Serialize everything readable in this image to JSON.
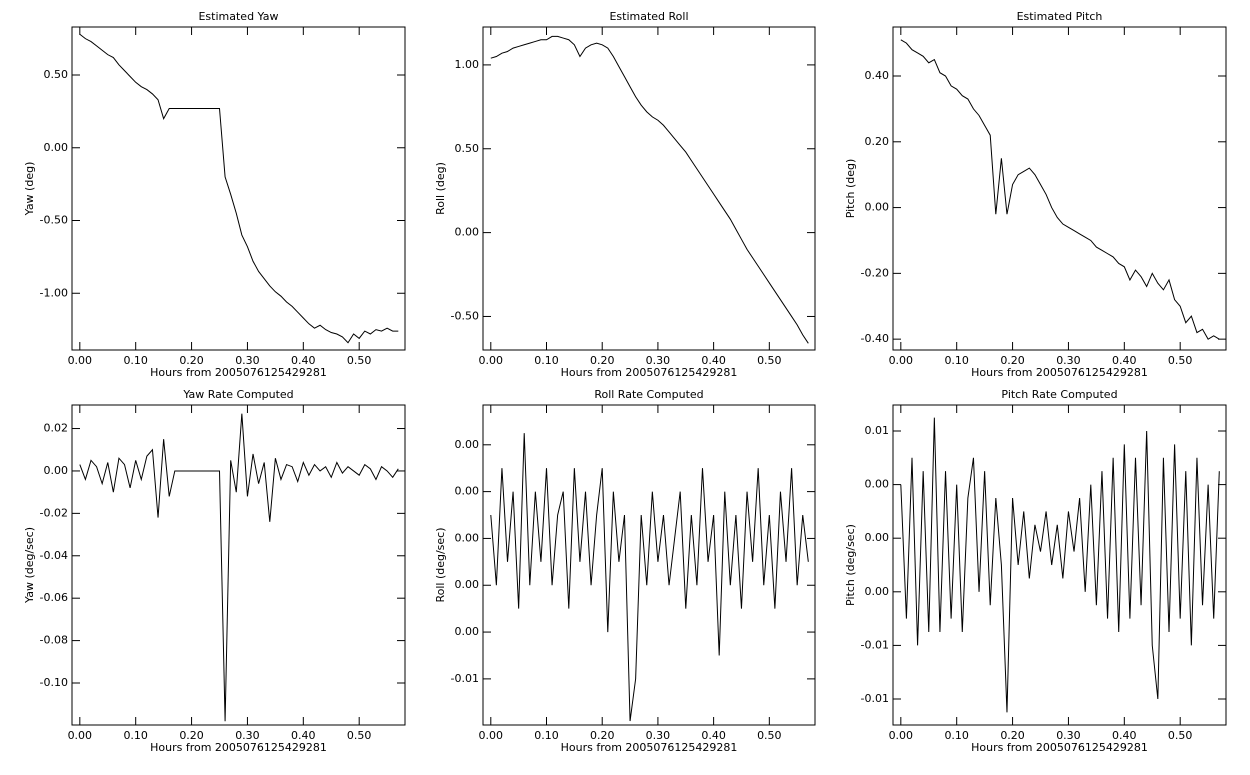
{
  "chart_data": [
    {
      "type": "line",
      "title": "Estimated Yaw",
      "x_label": "Hours from 2005076125429281",
      "y_label": "Yaw (deg)",
      "color": "#000000",
      "x": [
        0,
        0.01,
        0.02,
        0.03,
        0.04,
        0.05,
        0.06,
        0.07,
        0.08,
        0.09,
        0.1,
        0.11,
        0.12,
        0.13,
        0.14,
        0.15,
        0.16,
        0.17,
        0.18,
        0.19,
        0.2,
        0.21,
        0.22,
        0.23,
        0.24,
        0.25,
        0.26,
        0.27,
        0.28,
        0.29,
        0.3,
        0.31,
        0.32,
        0.33,
        0.34,
        0.35,
        0.36,
        0.37,
        0.38,
        0.39,
        0.4,
        0.41,
        0.42,
        0.43,
        0.44,
        0.45,
        0.46,
        0.47,
        0.48,
        0.49,
        0.5,
        0.51,
        0.52,
        0.53,
        0.54,
        0.55,
        0.56,
        0.57
      ],
      "values": [
        0.78,
        0.75,
        0.73,
        0.7,
        0.67,
        0.64,
        0.62,
        0.57,
        0.53,
        0.49,
        0.45,
        0.42,
        0.4,
        0.37,
        0.33,
        0.2,
        0.27,
        0.27,
        0.27,
        0.27,
        0.27,
        0.27,
        0.27,
        0.27,
        0.27,
        0.27,
        -0.2,
        -0.32,
        -0.45,
        -0.6,
        -0.68,
        -0.78,
        -0.85,
        -0.9,
        -0.95,
        -0.99,
        -1.02,
        -1.06,
        -1.09,
        -1.13,
        -1.17,
        -1.21,
        -1.24,
        -1.22,
        -1.25,
        -1.27,
        -1.28,
        -1.3,
        -1.34,
        -1.28,
        -1.31,
        -1.26,
        -1.28,
        -1.25,
        -1.26,
        -1.24,
        -1.26,
        -1.26
      ],
      "xlim": [
        -0.014,
        0.582
      ],
      "ylim": [
        -1.39,
        0.83
      ],
      "xticks": [
        {
          "value": 0,
          "label": "0.00"
        },
        {
          "value": 0.1,
          "label": "0.10"
        },
        {
          "value": 0.2,
          "label": "0.20"
        },
        {
          "value": 0.3,
          "label": "0.30"
        },
        {
          "value": 0.4,
          "label": "0.40"
        },
        {
          "value": 0.5,
          "label": "0.50"
        }
      ],
      "yticks": [
        {
          "value": 0.5,
          "label": "0.50"
        },
        {
          "value": 0,
          "label": "0.00"
        },
        {
          "value": -0.5,
          "label": "-0.50"
        },
        {
          "value": -1,
          "label": "-1.00"
        }
      ]
    },
    {
      "type": "line",
      "title": "Estimated Roll",
      "x_label": "Hours from 2005076125429281",
      "y_label": "Roll (deg)",
      "color": "#000000",
      "x": [
        0,
        0.01,
        0.02,
        0.03,
        0.04,
        0.05,
        0.06,
        0.07,
        0.08,
        0.09,
        0.1,
        0.11,
        0.12,
        0.13,
        0.14,
        0.15,
        0.16,
        0.17,
        0.18,
        0.19,
        0.2,
        0.21,
        0.22,
        0.23,
        0.24,
        0.25,
        0.26,
        0.27,
        0.28,
        0.29,
        0.3,
        0.31,
        0.32,
        0.33,
        0.34,
        0.35,
        0.36,
        0.37,
        0.38,
        0.39,
        0.4,
        0.41,
        0.42,
        0.43,
        0.44,
        0.45,
        0.46,
        0.47,
        0.48,
        0.49,
        0.5,
        0.51,
        0.52,
        0.53,
        0.54,
        0.55,
        0.56,
        0.57
      ],
      "values": [
        1.04,
        1.05,
        1.07,
        1.08,
        1.1,
        1.11,
        1.12,
        1.13,
        1.14,
        1.15,
        1.15,
        1.17,
        1.17,
        1.16,
        1.15,
        1.12,
        1.05,
        1.1,
        1.12,
        1.13,
        1.12,
        1.1,
        1.05,
        0.99,
        0.93,
        0.87,
        0.81,
        0.76,
        0.72,
        0.69,
        0.67,
        0.64,
        0.6,
        0.56,
        0.52,
        0.48,
        0.43,
        0.38,
        0.33,
        0.28,
        0.23,
        0.18,
        0.13,
        0.08,
        0.02,
        -0.04,
        -0.1,
        -0.15,
        -0.2,
        -0.25,
        -0.3,
        -0.35,
        -0.4,
        -0.45,
        -0.5,
        -0.55,
        -0.61,
        -0.66
      ],
      "xlim": [
        -0.014,
        0.582
      ],
      "ylim": [
        -0.7,
        1.226
      ],
      "xticks": [
        {
          "value": 0,
          "label": "0.00"
        },
        {
          "value": 0.1,
          "label": "0.10"
        },
        {
          "value": 0.2,
          "label": "0.20"
        },
        {
          "value": 0.3,
          "label": "0.30"
        },
        {
          "value": 0.4,
          "label": "0.40"
        },
        {
          "value": 0.5,
          "label": "0.50"
        }
      ],
      "yticks": [
        {
          "value": 1,
          "label": "1.00"
        },
        {
          "value": 0.5,
          "label": "0.50"
        },
        {
          "value": 0,
          "label": "0.00"
        },
        {
          "value": -0.5,
          "label": "-0.50"
        }
      ]
    },
    {
      "type": "line",
      "title": "Estimated Pitch",
      "x_label": "Hours from 2005076125429281",
      "y_label": "Pitch (deg)",
      "color": "#000000",
      "x": [
        0,
        0.01,
        0.02,
        0.03,
        0.04,
        0.05,
        0.06,
        0.07,
        0.08,
        0.09,
        0.1,
        0.11,
        0.12,
        0.13,
        0.14,
        0.15,
        0.16,
        0.17,
        0.18,
        0.19,
        0.2,
        0.21,
        0.22,
        0.23,
        0.24,
        0.25,
        0.26,
        0.27,
        0.28,
        0.29,
        0.3,
        0.31,
        0.32,
        0.33,
        0.34,
        0.35,
        0.36,
        0.37,
        0.38,
        0.39,
        0.4,
        0.41,
        0.42,
        0.43,
        0.44,
        0.45,
        0.46,
        0.47,
        0.48,
        0.49,
        0.5,
        0.51,
        0.52,
        0.53,
        0.54,
        0.55,
        0.56,
        0.57
      ],
      "values": [
        0.51,
        0.5,
        0.48,
        0.47,
        0.46,
        0.44,
        0.45,
        0.41,
        0.4,
        0.37,
        0.36,
        0.34,
        0.33,
        0.3,
        0.28,
        0.25,
        0.22,
        -0.02,
        0.15,
        -0.02,
        0.07,
        0.1,
        0.11,
        0.12,
        0.1,
        0.07,
        0.04,
        0.0,
        -0.03,
        -0.05,
        -0.06,
        -0.07,
        -0.08,
        -0.09,
        -0.1,
        -0.12,
        -0.13,
        -0.14,
        -0.15,
        -0.17,
        -0.18,
        -0.22,
        -0.19,
        -0.21,
        -0.24,
        -0.2,
        -0.23,
        -0.25,
        -0.22,
        -0.28,
        -0.3,
        -0.35,
        -0.33,
        -0.38,
        -0.37,
        -0.4,
        -0.39,
        -0.4
      ],
      "xlim": [
        -0.014,
        0.582
      ],
      "ylim": [
        -0.433,
        0.549
      ],
      "xticks": [
        {
          "value": 0,
          "label": "0.00"
        },
        {
          "value": 0.1,
          "label": "0.10"
        },
        {
          "value": 0.2,
          "label": "0.20"
        },
        {
          "value": 0.3,
          "label": "0.30"
        },
        {
          "value": 0.4,
          "label": "0.40"
        },
        {
          "value": 0.5,
          "label": "0.50"
        }
      ],
      "yticks": [
        {
          "value": 0.4,
          "label": "0.40"
        },
        {
          "value": 0.2,
          "label": "0.20"
        },
        {
          "value": 0,
          "label": "0.00"
        },
        {
          "value": -0.2,
          "label": "-0.20"
        },
        {
          "value": -0.4,
          "label": "-0.40"
        }
      ]
    },
    {
      "type": "line",
      "title": "Yaw Rate Computed",
      "x_label": "Hours from 2005076125429281",
      "y_label": "Yaw (deg/sec)",
      "color": "#000000",
      "x": [
        0,
        0.01,
        0.02,
        0.03,
        0.04,
        0.05,
        0.06,
        0.07,
        0.08,
        0.09,
        0.1,
        0.11,
        0.12,
        0.13,
        0.14,
        0.15,
        0.16,
        0.17,
        0.18,
        0.19,
        0.2,
        0.21,
        0.22,
        0.23,
        0.24,
        0.25,
        0.26,
        0.27,
        0.28,
        0.29,
        0.3,
        0.31,
        0.32,
        0.33,
        0.34,
        0.35,
        0.36,
        0.37,
        0.38,
        0.39,
        0.4,
        0.41,
        0.42,
        0.43,
        0.44,
        0.45,
        0.46,
        0.47,
        0.48,
        0.49,
        0.5,
        0.51,
        0.52,
        0.53,
        0.54,
        0.55,
        0.56,
        0.57
      ],
      "values": [
        0.003,
        -0.004,
        0.005,
        0.002,
        -0.006,
        0.004,
        -0.01,
        0.006,
        0.003,
        -0.008,
        0.005,
        -0.004,
        0.007,
        0.01,
        -0.022,
        0.015,
        -0.012,
        0,
        0,
        0,
        0,
        0,
        0,
        0,
        0,
        0,
        -0.118,
        0.005,
        -0.01,
        0.027,
        -0.012,
        0.008,
        -0.006,
        0.004,
        -0.024,
        0.006,
        -0.004,
        0.003,
        0.002,
        -0.005,
        0.004,
        -0.002,
        0.003,
        0.0,
        0.002,
        -0.003,
        0.004,
        -0.001,
        0.002,
        0.0,
        -0.002,
        0.003,
        0.001,
        -0.004,
        0.002,
        0.0,
        -0.003,
        0.001
      ],
      "xlim": [
        -0.014,
        0.582
      ],
      "ylim": [
        -0.1198,
        0.0311
      ],
      "xticks": [
        {
          "value": 0,
          "label": "0.00"
        },
        {
          "value": 0.1,
          "label": "0.10"
        },
        {
          "value": 0.2,
          "label": "0.20"
        },
        {
          "value": 0.3,
          "label": "0.30"
        },
        {
          "value": 0.4,
          "label": "0.40"
        },
        {
          "value": 0.5,
          "label": "0.50"
        }
      ],
      "yticks": [
        0.02,
        {
          "value": 0,
          "label": "0.00"
        },
        -0.02,
        -0.04,
        -0.06,
        -0.08,
        {
          "value": -0.1,
          "label": "-0.10"
        }
      ]
    },
    {
      "type": "line",
      "title": "Roll Rate Computed",
      "x_label": "Hours from 2005076125429281",
      "y_label": "Roll (deg/sec)",
      "color": "#000000",
      "x": [
        0,
        0.01,
        0.02,
        0.03,
        0.04,
        0.05,
        0.06,
        0.07,
        0.08,
        0.09,
        0.1,
        0.11,
        0.12,
        0.13,
        0.14,
        0.15,
        0.16,
        0.17,
        0.18,
        0.19,
        0.2,
        0.21,
        0.22,
        0.23,
        0.24,
        0.25,
        0.26,
        0.27,
        0.28,
        0.29,
        0.3,
        0.31,
        0.32,
        0.33,
        0.34,
        0.35,
        0.36,
        0.37,
        0.38,
        0.39,
        0.4,
        0.41,
        0.42,
        0.43,
        0.44,
        0.45,
        0.46,
        0.47,
        0.48,
        0.49,
        0.5,
        0.51,
        0.52,
        0.53,
        0.54,
        0.55,
        0.56,
        0.57
      ],
      "values": [
        0.001,
        -0.002,
        0.003,
        -0.001,
        0.002,
        -0.003,
        0.0045,
        -0.002,
        0.002,
        -0.001,
        0.003,
        -0.002,
        0.001,
        0.002,
        -0.003,
        0.003,
        -0.001,
        0.002,
        -0.002,
        0.001,
        0.003,
        -0.004,
        0.002,
        -0.001,
        0.001,
        -0.0078,
        -0.006,
        0.001,
        -0.002,
        0.002,
        -0.001,
        0.001,
        -0.002,
        0.0,
        0.002,
        -0.003,
        0.001,
        -0.002,
        0.003,
        -0.001,
        0.001,
        -0.005,
        0.002,
        -0.002,
        0.001,
        -0.003,
        0.002,
        -0.001,
        0.003,
        -0.002,
        0.001,
        -0.003,
        0.002,
        -0.001,
        0.003,
        -0.002,
        0.001,
        -0.001
      ],
      "xlim": [
        -0.014,
        0.582
      ],
      "ylim": [
        -0.00797,
        0.0057
      ],
      "xticks": [
        {
          "value": 0,
          "label": "0.00"
        },
        {
          "value": 0.1,
          "label": "0.10"
        },
        {
          "value": 0.2,
          "label": "0.20"
        },
        {
          "value": 0.3,
          "label": "0.30"
        },
        {
          "value": 0.4,
          "label": "0.40"
        },
        {
          "value": 0.5,
          "label": "0.50"
        }
      ],
      "yticks": [
        {
          "value": 0.004,
          "label": "0.00"
        },
        {
          "value": 0.002,
          "label": "0.00"
        },
        {
          "value": 0,
          "label": "0.00"
        },
        {
          "value": -0.002,
          "label": "0.00"
        },
        {
          "value": -0.004,
          "label": "0.00"
        },
        {
          "value": -0.006,
          "label": "-0.01"
        }
      ]
    },
    {
      "type": "line",
      "title": "Pitch Rate Computed",
      "x_label": "Hours from 2005076125429281",
      "y_label": "Pitch (deg/sec)",
      "color": "#000000",
      "x": [
        0,
        0.01,
        0.02,
        0.03,
        0.04,
        0.05,
        0.06,
        0.07,
        0.08,
        0.09,
        0.1,
        0.11,
        0.12,
        0.13,
        0.14,
        0.15,
        0.16,
        0.17,
        0.18,
        0.19,
        0.2,
        0.21,
        0.22,
        0.23,
        0.24,
        0.25,
        0.26,
        0.27,
        0.28,
        0.29,
        0.3,
        0.31,
        0.32,
        0.33,
        0.34,
        0.35,
        0.36,
        0.37,
        0.38,
        0.39,
        0.4,
        0.41,
        0.42,
        0.43,
        0.44,
        0.45,
        0.46,
        0.47,
        0.48,
        0.49,
        0.5,
        0.51,
        0.52,
        0.53,
        0.54,
        0.55,
        0.56,
        0.57
      ],
      "values": [
        0.004,
        -0.006,
        0.006,
        -0.008,
        0.005,
        -0.007,
        0.009,
        -0.007,
        0.005,
        -0.006,
        0.004,
        -0.007,
        0.003,
        0.006,
        -0.004,
        0.005,
        -0.005,
        0.003,
        -0.002,
        -0.013,
        0.003,
        -0.002,
        0.002,
        -0.003,
        0.001,
        -0.001,
        0.002,
        -0.002,
        0.001,
        -0.003,
        0.002,
        -0.001,
        0.003,
        -0.004,
        0.004,
        -0.005,
        0.005,
        -0.006,
        0.006,
        -0.007,
        0.007,
        -0.006,
        0.006,
        -0.005,
        0.008,
        -0.008,
        -0.012,
        0.006,
        -0.007,
        0.007,
        -0.006,
        0.005,
        -0.008,
        0.006,
        -0.005,
        0.004,
        -0.006,
        0.005
      ],
      "xlim": [
        -0.014,
        0.582
      ],
      "ylim": [
        -0.01394,
        0.00994
      ],
      "xticks": [
        {
          "value": 0,
          "label": "0.00"
        },
        {
          "value": 0.1,
          "label": "0.10"
        },
        {
          "value": 0.2,
          "label": "0.20"
        },
        {
          "value": 0.3,
          "label": "0.30"
        },
        {
          "value": 0.4,
          "label": "0.40"
        },
        {
          "value": 0.5,
          "label": "0.50"
        }
      ],
      "yticks": [
        {
          "value": 0.008,
          "label": "0.01"
        },
        {
          "value": 0.004,
          "label": "0.00"
        },
        {
          "value": 0,
          "label": "0.00"
        },
        {
          "value": -0.004,
          "label": "0.00"
        },
        {
          "value": -0.008,
          "label": "-0.01"
        },
        {
          "value": -0.012,
          "label": "-0.01"
        }
      ]
    }
  ]
}
